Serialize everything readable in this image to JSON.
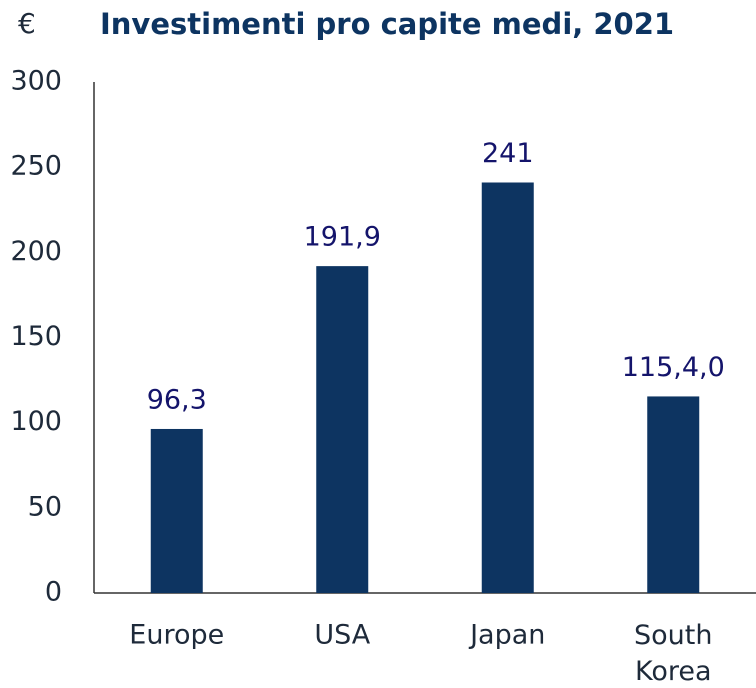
{
  "chart_data": {
    "type": "bar",
    "title": "Investimenti pro capite medi, 2021",
    "y_label": "€",
    "categories": [
      "Europe",
      "USA",
      "Japan",
      "South Korea"
    ],
    "values": [
      96.3,
      191.9,
      241,
      115.4
    ],
    "value_labels": [
      "96,3",
      "191,9",
      "241",
      "115,4,0"
    ],
    "color": "#0d3461",
    "ylim": [
      0,
      300
    ],
    "yticks": [
      0,
      50,
      100,
      150,
      200,
      250,
      300
    ],
    "grid": false
  }
}
